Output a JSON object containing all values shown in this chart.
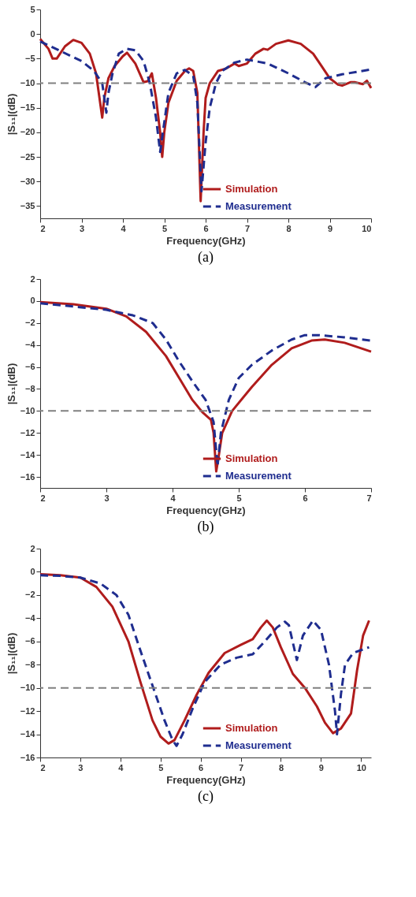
{
  "chart_data": [
    {
      "type": "line",
      "xlabel": "Frequency(GHz)",
      "ylabel": "|S₁₁|(dB)",
      "annotations": [
        "(a)"
      ],
      "xlim": [
        2,
        10
      ],
      "xticks": [
        2,
        3,
        4,
        5,
        6,
        7,
        8,
        9,
        10
      ],
      "ylim": [
        -37.5,
        5
      ],
      "yticks": [
        5,
        0,
        -5,
        -10,
        -15,
        -20,
        -25,
        -30,
        -35
      ],
      "grid": false,
      "legend": "bottom right",
      "marker": "none",
      "ref_lines": [
        {
          "axis": "y",
          "value": -10,
          "color": "#808080",
          "line_style": "dashed"
        }
      ],
      "series": [
        {
          "name": "Simulation",
          "color": "#b01c1c",
          "line_style": "solid",
          "x": [
            2,
            2.2,
            2.3,
            2.4,
            2.6,
            2.8,
            3.0,
            3.2,
            3.35,
            3.45,
            3.5,
            3.55,
            3.65,
            3.8,
            4.0,
            4.1,
            4.3,
            4.5,
            4.6,
            4.7,
            4.8,
            4.9,
            4.95,
            5.0,
            5.1,
            5.3,
            5.5,
            5.6,
            5.7,
            5.8,
            5.88,
            5.95,
            6.0,
            6.1,
            6.3,
            6.5,
            6.7,
            6.8,
            7.0,
            7.2,
            7.4,
            7.5,
            7.7,
            8.0,
            8.3,
            8.6,
            8.8,
            9.0,
            9.2,
            9.3,
            9.5,
            9.6,
            9.8,
            9.9,
            10
          ],
          "values": [
            -1,
            -3,
            -5,
            -5,
            -2.5,
            -1.2,
            -1.8,
            -4,
            -8,
            -14,
            -17,
            -13,
            -9,
            -6.5,
            -4.5,
            -3.8,
            -6,
            -9.8,
            -9.6,
            -8,
            -13,
            -20,
            -25,
            -20,
            -14,
            -9.5,
            -7.5,
            -7,
            -7.5,
            -12,
            -34,
            -20,
            -13,
            -10,
            -7.5,
            -7,
            -6,
            -6.5,
            -6,
            -4,
            -3,
            -3.2,
            -2,
            -1.3,
            -2,
            -4,
            -6.5,
            -9,
            -10.3,
            -10.5,
            -9.8,
            -9.8,
            -10.2,
            -9.5,
            -11
          ]
        },
        {
          "name": "Measurement",
          "color": "#1f2d8f",
          "line_style": "dashed",
          "x": [
            2,
            2.5,
            3.0,
            3.3,
            3.5,
            3.6,
            3.65,
            3.75,
            3.9,
            4.1,
            4.3,
            4.5,
            4.65,
            4.8,
            4.9,
            5.0,
            5.1,
            5.3,
            5.5,
            5.7,
            5.8,
            5.9,
            6.0,
            6.1,
            6.25,
            6.4,
            6.7,
            7.0,
            7.5,
            8.0,
            8.4,
            8.65,
            8.9,
            9.3,
            10
          ],
          "values": [
            -1.5,
            -3.5,
            -5.5,
            -7.5,
            -10,
            -16,
            -12,
            -8,
            -4,
            -3,
            -3.3,
            -5.5,
            -10,
            -17,
            -24,
            -18,
            -12,
            -8,
            -7.3,
            -8.5,
            -14,
            -32,
            -22,
            -15,
            -10,
            -7.5,
            -5.8,
            -5.2,
            -6,
            -8,
            -9.8,
            -10.8,
            -9,
            -8.2,
            -7.2
          ]
        }
      ]
    },
    {
      "type": "line",
      "xlabel": "Frequency(GHz)",
      "ylabel": "|S₁₁|(dB)",
      "annotations": [
        "(b)"
      ],
      "xlim": [
        2,
        7
      ],
      "xticks": [
        2,
        3,
        4,
        5,
        6,
        7
      ],
      "ylim": [
        -17,
        2
      ],
      "yticks": [
        2,
        0,
        -2,
        -4,
        -6,
        -8,
        -10,
        -12,
        -14,
        -16
      ],
      "grid": false,
      "legend": "bottom right",
      "marker": "none",
      "ref_lines": [
        {
          "axis": "y",
          "value": -10,
          "color": "#808080",
          "line_style": "dashed"
        }
      ],
      "series": [
        {
          "name": "Simulation",
          "color": "#b01c1c",
          "line_style": "solid",
          "x": [
            2,
            2.5,
            3.0,
            3.3,
            3.6,
            3.9,
            4.1,
            4.3,
            4.45,
            4.58,
            4.62,
            4.66,
            4.7,
            4.75,
            4.9,
            5.2,
            5.5,
            5.8,
            6.1,
            6.3,
            6.6,
            7.0
          ],
          "values": [
            -0.1,
            -0.3,
            -0.7,
            -1.4,
            -2.8,
            -5,
            -7,
            -9,
            -10.1,
            -10.8,
            -12,
            -15.5,
            -14,
            -12,
            -10,
            -7.8,
            -5.8,
            -4.3,
            -3.6,
            -3.5,
            -3.8,
            -4.6
          ]
        },
        {
          "name": "Measurement",
          "color": "#1f2d8f",
          "line_style": "dashed",
          "x": [
            2,
            2.5,
            3.0,
            3.4,
            3.7,
            3.9,
            4.1,
            4.3,
            4.5,
            4.62,
            4.68,
            4.73,
            4.85,
            5.0,
            5.2,
            5.5,
            5.8,
            6.0,
            6.2,
            6.6,
            7.0
          ],
          "values": [
            -0.2,
            -0.5,
            -0.8,
            -1.3,
            -2,
            -3.5,
            -5.5,
            -7.3,
            -9,
            -11,
            -15,
            -12,
            -9,
            -7,
            -5.8,
            -4.5,
            -3.5,
            -3.1,
            -3.1,
            -3.3,
            -3.6
          ]
        }
      ]
    },
    {
      "type": "line",
      "xlabel": "Frequency(GHz)",
      "ylabel": "|S₁₁|(dB)",
      "annotations": [
        "(c)"
      ],
      "xlim": [
        2,
        10.25
      ],
      "xticks": [
        2,
        3,
        4,
        5,
        6,
        7,
        8,
        9,
        10
      ],
      "ylim": [
        -16,
        2
      ],
      "yticks": [
        2,
        0,
        -2,
        -4,
        -6,
        -8,
        -10,
        -12,
        -14,
        -16
      ],
      "grid": false,
      "legend": "bottom right",
      "marker": "none",
      "ref_lines": [
        {
          "axis": "y",
          "value": -10,
          "color": "#808080",
          "line_style": "dashed"
        }
      ],
      "series": [
        {
          "name": "Simulation",
          "color": "#b01c1c",
          "line_style": "solid",
          "x": [
            2,
            2.5,
            3.0,
            3.4,
            3.8,
            4.2,
            4.5,
            4.8,
            5.0,
            5.2,
            5.35,
            5.6,
            5.9,
            6.2,
            6.6,
            7.0,
            7.3,
            7.5,
            7.65,
            7.8,
            8.0,
            8.3,
            8.6,
            8.9,
            9.1,
            9.3,
            9.5,
            9.75,
            9.9,
            10.05,
            10.2
          ],
          "values": [
            -0.2,
            -0.3,
            -0.5,
            -1.3,
            -3,
            -6,
            -9.5,
            -12.8,
            -14.2,
            -14.8,
            -14.5,
            -12.8,
            -10.6,
            -8.7,
            -7,
            -6.3,
            -5.8,
            -4.8,
            -4.2,
            -4.8,
            -6.5,
            -8.8,
            -10,
            -11.6,
            -13,
            -13.9,
            -13.5,
            -12.2,
            -8.5,
            -5.5,
            -4.2
          ]
        },
        {
          "name": "Measurement",
          "color": "#1f2d8f",
          "line_style": "dashed",
          "x": [
            2,
            2.5,
            3.0,
            3.5,
            3.9,
            4.2,
            4.5,
            4.8,
            5.1,
            5.3,
            5.4,
            5.55,
            5.8,
            6.1,
            6.5,
            6.9,
            7.3,
            7.6,
            7.9,
            8.1,
            8.2,
            8.4,
            8.55,
            8.8,
            9.0,
            9.2,
            9.35,
            9.4,
            9.5,
            9.6,
            9.8,
            10.2
          ],
          "values": [
            -0.3,
            -0.35,
            -0.5,
            -1,
            -2,
            -3.7,
            -6.8,
            -9.8,
            -12.8,
            -14.5,
            -15,
            -14,
            -11.8,
            -9.5,
            -8,
            -7.4,
            -7.1,
            -6,
            -4.8,
            -4.3,
            -4.6,
            -7.6,
            -5.5,
            -4.2,
            -5,
            -8,
            -12,
            -14,
            -10.5,
            -8,
            -7,
            -6.5
          ]
        }
      ]
    }
  ]
}
